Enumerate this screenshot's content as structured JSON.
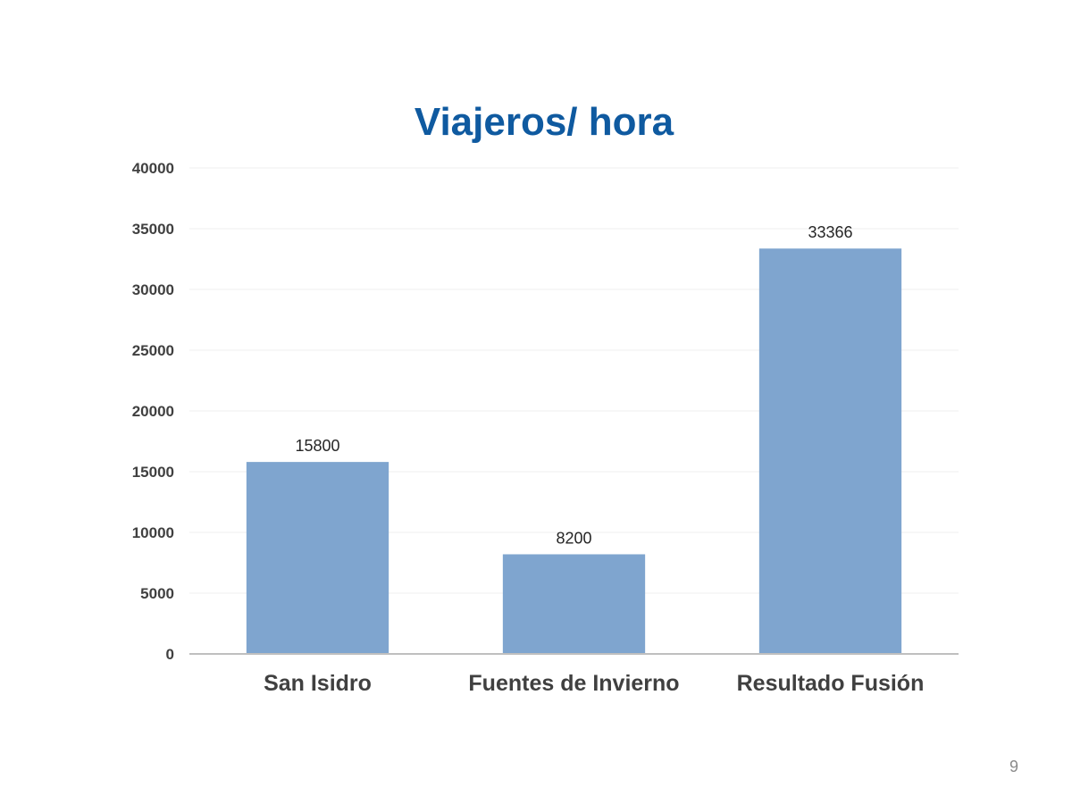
{
  "slide": {
    "page_number": "9"
  },
  "chart_data": {
    "type": "bar",
    "title": "Viajeros/ hora",
    "xlabel": "",
    "ylabel": "",
    "categories": [
      "San Isidro",
      "Fuentes de Invierno",
      "Resultado Fusión"
    ],
    "values": [
      15800,
      8200,
      33366
    ],
    "data_labels": [
      "15800",
      "8200",
      "33366"
    ],
    "ylim": [
      0,
      40000
    ],
    "yticks": [
      0,
      5000,
      10000,
      15000,
      20000,
      25000,
      30000,
      35000,
      40000
    ],
    "grid": true,
    "legend": "none",
    "colors": {
      "bar": "#7fa5cf",
      "title": "#0f5aa0",
      "grid": "#efefef",
      "axis": "#bfbfbf"
    }
  }
}
